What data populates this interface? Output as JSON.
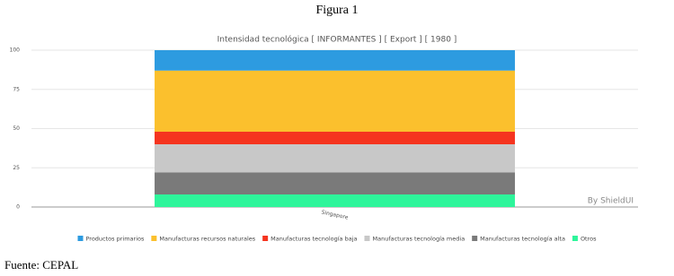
{
  "header": {
    "figure_label": "Figura 1"
  },
  "chart_data": {
    "type": "bar",
    "stacked": true,
    "title": "Intensidad tecnológica [ INFORMANTES ] [ Export ] [ 1980 ]",
    "categories": [
      "Singapore"
    ],
    "series": [
      {
        "name": "Productos primarios",
        "color": "#2d9be0",
        "values": [
          13
        ]
      },
      {
        "name": "Manufacturas recursos naturales",
        "color": "#fbc02d",
        "values": [
          39
        ]
      },
      {
        "name": "Manufacturas tecnología baja",
        "color": "#f5341f",
        "values": [
          8
        ]
      },
      {
        "name": "Manufacturas tecnología media",
        "color": "#c8c8c8",
        "values": [
          18
        ]
      },
      {
        "name": "Manufacturas tecnología alta",
        "color": "#7a7a7a",
        "values": [
          14
        ]
      },
      {
        "name": "Otros",
        "color": "#2ef59b",
        "values": [
          8
        ]
      }
    ],
    "ylim": [
      0,
      100
    ],
    "yticks": [
      0,
      25,
      50,
      75,
      100
    ],
    "grid": true,
    "credit": "By ShieldUI"
  },
  "footer": {
    "source": "Fuente: CEPAL"
  }
}
